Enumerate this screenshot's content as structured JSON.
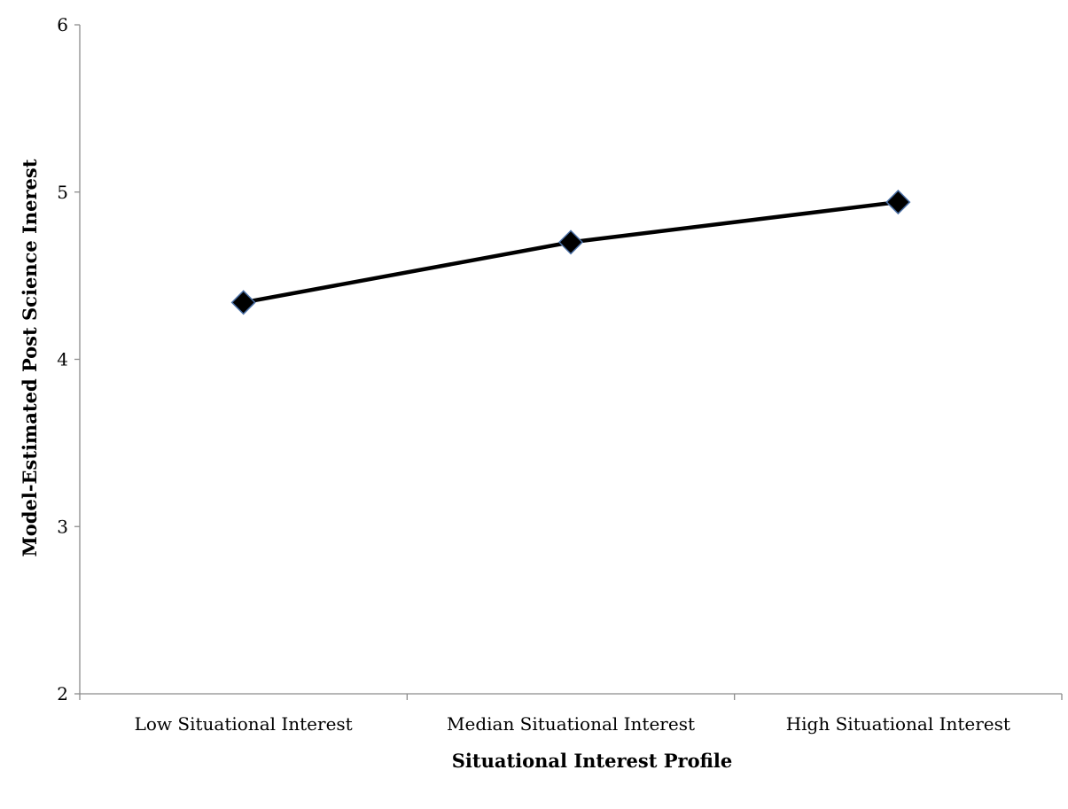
{
  "chart_data": {
    "type": "line",
    "title": "",
    "xlabel": "Situational Interest Profile",
    "ylabel": "Model-Estimated Post Science Inerest",
    "categories": [
      "Low Situational Interest",
      "Median Situational Interest",
      "High Situational Interest"
    ],
    "series": [
      {
        "values": [
          4.34,
          4.7,
          4.94
        ]
      }
    ],
    "ylim": [
      2,
      6
    ],
    "yticks": [
      2,
      3,
      4,
      5,
      6
    ],
    "grid": false,
    "legend": "none",
    "colors": {
      "line": "#000000",
      "marker_fill": "#000000",
      "marker_edge": "#4a6fa5",
      "axis": "#8c8c8c"
    }
  }
}
